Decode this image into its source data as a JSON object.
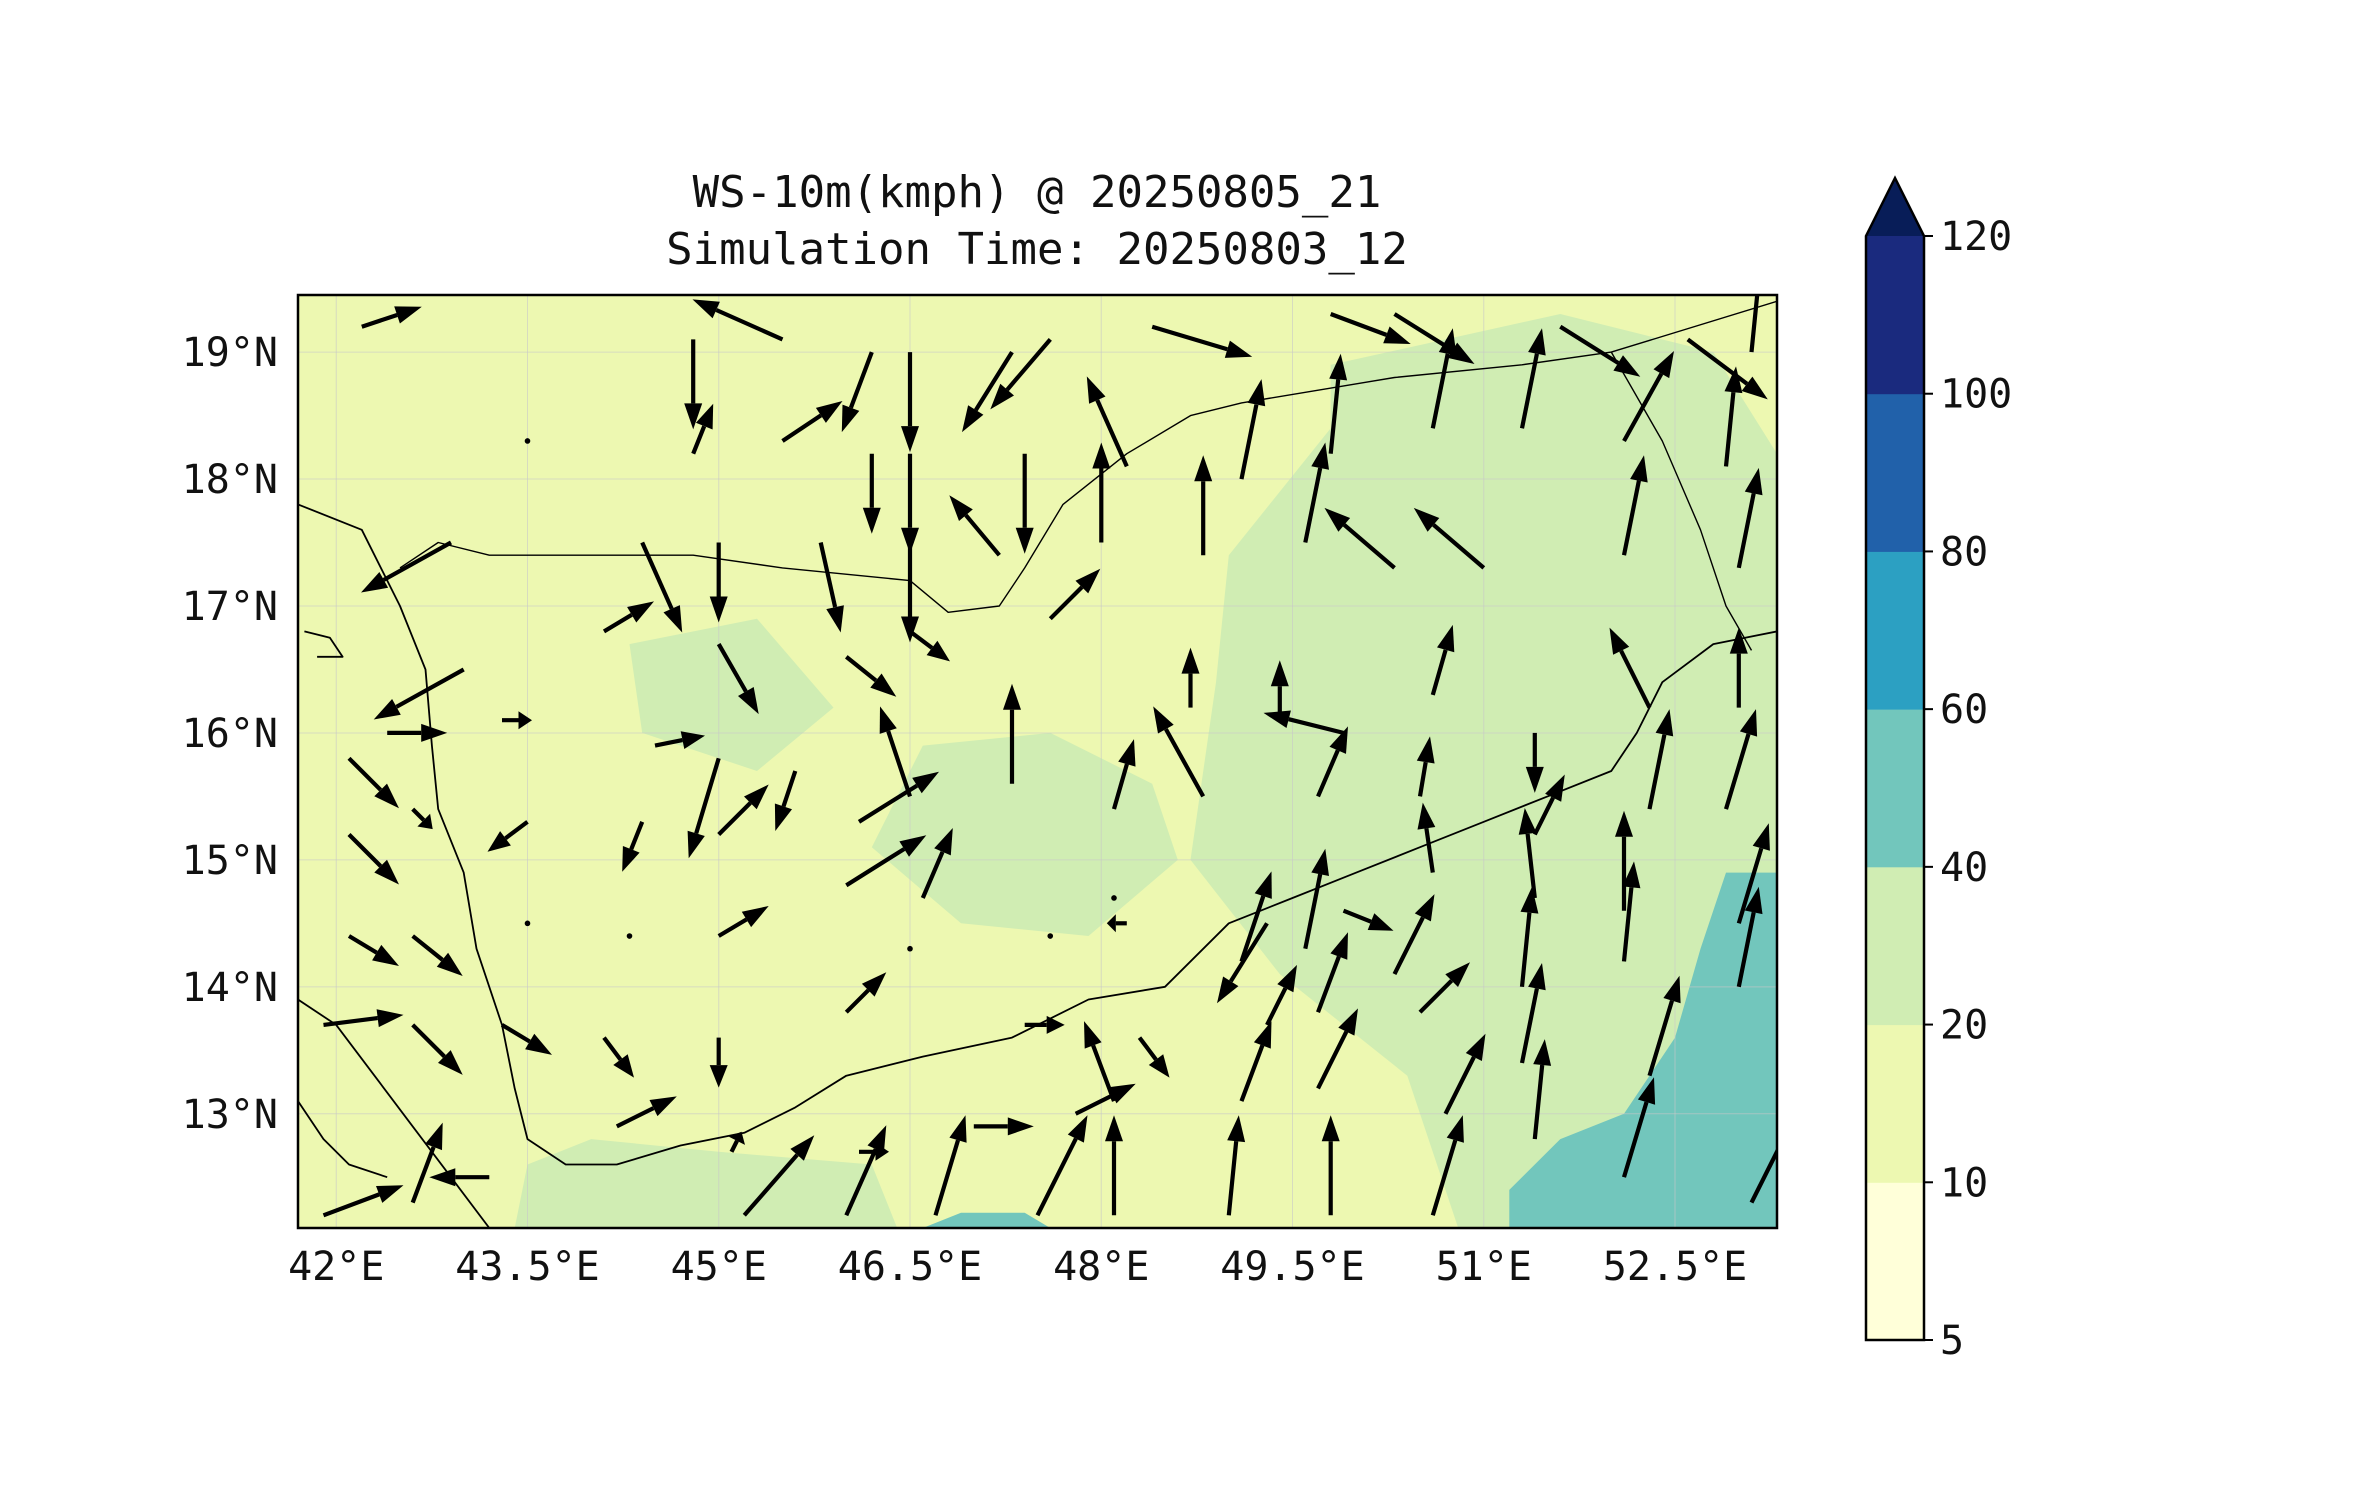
{
  "title": {
    "line1": "WS-10m(kmph) @ 20250805_21",
    "line2": "Simulation Time: 20250803_12"
  },
  "chart_data": {
    "type": "heatmap",
    "variable": "WS-10m",
    "units": "kmph",
    "xlim": [
      41.7,
      53.3
    ],
    "ylim": [
      12.1,
      19.45
    ],
    "x_ticks": [
      {
        "value": 42.0,
        "label": "42°E"
      },
      {
        "value": 43.5,
        "label": "43.5°E"
      },
      {
        "value": 45.0,
        "label": "45°E"
      },
      {
        "value": 46.5,
        "label": "46.5°E"
      },
      {
        "value": 48.0,
        "label": "48°E"
      },
      {
        "value": 49.5,
        "label": "49.5°E"
      },
      {
        "value": 51.0,
        "label": "51°E"
      },
      {
        "value": 52.5,
        "label": "52.5°E"
      }
    ],
    "y_ticks": [
      {
        "value": 13,
        "label": "13°N"
      },
      {
        "value": 14,
        "label": "14°N"
      },
      {
        "value": 15,
        "label": "15°N"
      },
      {
        "value": 16,
        "label": "16°N"
      },
      {
        "value": 17,
        "label": "17°N"
      },
      {
        "value": 18,
        "label": "18°N"
      },
      {
        "value": 19,
        "label": "19°N"
      }
    ],
    "grid": true,
    "colorbar": {
      "placement": "right",
      "extend": "max",
      "levels": [
        {
          "label": "5",
          "value": 5
        },
        {
          "label": "10",
          "value": 10
        },
        {
          "label": "20",
          "value": 20
        },
        {
          "label": "40",
          "value": 40
        },
        {
          "label": "60",
          "value": 60
        },
        {
          "label": "80",
          "value": 80
        },
        {
          "label": "100",
          "value": 100
        },
        {
          "label": "120",
          "value": 120
        }
      ],
      "colors": [
        "#ffffd9",
        "#edf8b1",
        "#d0edb3",
        "#72c6bc",
        "#2ca0c2",
        "#2161aa",
        "#1a2a7e"
      ],
      "extend_color": "#081d58"
    },
    "fill_regions": [
      {
        "level": 1,
        "points": [
          [
            41.7,
            19.45
          ],
          [
            53.3,
            19.45
          ],
          [
            53.3,
            12.1
          ],
          [
            41.7,
            12.1
          ]
        ]
      },
      {
        "level": 2,
        "points": [
          [
            49.8,
            18.9
          ],
          [
            51.6,
            19.3
          ],
          [
            52.8,
            19.0
          ],
          [
            53.3,
            18.2
          ],
          [
            53.3,
            12.1
          ],
          [
            50.8,
            12.1
          ],
          [
            50.4,
            13.3
          ],
          [
            49.4,
            14.1
          ],
          [
            48.7,
            15.0
          ],
          [
            48.9,
            16.4
          ],
          [
            49.0,
            17.4
          ],
          [
            49.8,
            18.4
          ]
        ]
      },
      {
        "level": 2,
        "points": [
          [
            46.6,
            15.9
          ],
          [
            47.6,
            16.0
          ],
          [
            48.4,
            15.6
          ],
          [
            48.6,
            15.0
          ],
          [
            47.9,
            14.4
          ],
          [
            46.9,
            14.5
          ],
          [
            46.2,
            15.1
          ]
        ]
      },
      {
        "level": 2,
        "points": [
          [
            43.4,
            12.1
          ],
          [
            46.4,
            12.1
          ],
          [
            46.2,
            12.6
          ],
          [
            45.0,
            12.7
          ],
          [
            44.0,
            12.8
          ],
          [
            43.5,
            12.6
          ]
        ]
      },
      {
        "level": 2,
        "points": [
          [
            44.3,
            16.7
          ],
          [
            45.3,
            16.9
          ],
          [
            45.9,
            16.2
          ],
          [
            45.3,
            15.7
          ],
          [
            44.4,
            16.0
          ]
        ]
      },
      {
        "level": 3,
        "points": [
          [
            51.2,
            12.1
          ],
          [
            53.3,
            12.1
          ],
          [
            53.3,
            14.9
          ],
          [
            52.9,
            14.9
          ],
          [
            52.7,
            14.3
          ],
          [
            52.5,
            13.6
          ],
          [
            52.1,
            13.0
          ],
          [
            51.6,
            12.8
          ],
          [
            51.2,
            12.4
          ]
        ]
      },
      {
        "level": 3,
        "points": [
          [
            46.6,
            12.1
          ],
          [
            47.6,
            12.1
          ],
          [
            47.4,
            12.22
          ],
          [
            46.9,
            12.22
          ]
        ]
      }
    ],
    "coastlines": [
      [
        [
          41.7,
          17.8
        ],
        [
          42.2,
          17.6
        ],
        [
          42.5,
          17.0
        ],
        [
          42.7,
          16.5
        ],
        [
          42.75,
          15.9
        ],
        [
          42.8,
          15.4
        ],
        [
          43.0,
          14.9
        ],
        [
          43.1,
          14.3
        ],
        [
          43.3,
          13.7
        ],
        [
          43.4,
          13.2
        ],
        [
          43.5,
          12.8
        ],
        [
          43.8,
          12.6
        ],
        [
          44.2,
          12.6
        ],
        [
          44.7,
          12.75
        ],
        [
          45.2,
          12.85
        ],
        [
          45.6,
          13.05
        ],
        [
          46.0,
          13.3
        ],
        [
          46.6,
          13.45
        ],
        [
          47.3,
          13.6
        ],
        [
          47.9,
          13.9
        ],
        [
          48.5,
          14.0
        ],
        [
          49.0,
          14.5
        ],
        [
          49.5,
          14.7
        ],
        [
          50.0,
          14.9
        ],
        [
          50.5,
          15.1
        ],
        [
          51.0,
          15.3
        ],
        [
          51.5,
          15.5
        ],
        [
          52.0,
          15.7
        ],
        [
          52.2,
          16.0
        ],
        [
          52.4,
          16.4
        ],
        [
          52.8,
          16.7
        ],
        [
          53.3,
          16.8
        ]
      ],
      [
        [
          41.7,
          13.9
        ],
        [
          42.0,
          13.7
        ],
        [
          42.3,
          13.3
        ],
        [
          42.6,
          12.9
        ],
        [
          42.9,
          12.5
        ],
        [
          43.2,
          12.1
        ]
      ],
      [
        [
          41.7,
          13.1
        ],
        [
          41.9,
          12.8
        ],
        [
          42.1,
          12.6
        ],
        [
          42.4,
          12.5
        ]
      ],
      [
        [
          41.75,
          16.8
        ],
        [
          41.95,
          16.75
        ],
        [
          42.05,
          16.6
        ],
        [
          41.85,
          16.6
        ]
      ]
    ],
    "borders": [
      [
        [
          42.5,
          17.3
        ],
        [
          42.8,
          17.5
        ],
        [
          43.2,
          17.4
        ],
        [
          44.0,
          17.4
        ],
        [
          44.8,
          17.4
        ],
        [
          45.5,
          17.3
        ],
        [
          46.5,
          17.2
        ],
        [
          46.8,
          16.95
        ],
        [
          47.2,
          17.0
        ],
        [
          47.4,
          17.3
        ],
        [
          47.7,
          17.8
        ],
        [
          48.2,
          18.2
        ],
        [
          48.7,
          18.5
        ],
        [
          49.1,
          18.6
        ],
        [
          50.3,
          18.8
        ],
        [
          51.3,
          18.9
        ],
        [
          52.0,
          19.0
        ],
        [
          53.3,
          19.4
        ]
      ],
      [
        [
          52.0,
          19.0
        ],
        [
          52.4,
          18.3
        ],
        [
          52.7,
          17.6
        ],
        [
          52.9,
          17.0
        ],
        [
          53.1,
          16.65
        ]
      ]
    ],
    "wind_vectors": [
      [
        42.2,
        19.2,
        0.6,
        0.2
      ],
      [
        43.5,
        18.3,
        0.0,
        0.0
      ],
      [
        44.8,
        19.1,
        0.0,
        -0.9
      ],
      [
        45.5,
        19.1,
        -0.9,
        0.4
      ],
      [
        46.2,
        19.0,
        -0.3,
        -0.8
      ],
      [
        46.5,
        19.0,
        0.0,
        -1.0
      ],
      [
        47.3,
        19.0,
        -0.5,
        -0.8
      ],
      [
        47.6,
        19.1,
        -0.6,
        -0.7
      ],
      [
        48.4,
        19.2,
        1.0,
        -0.3
      ],
      [
        49.8,
        19.3,
        0.8,
        -0.3
      ],
      [
        50.3,
        19.3,
        0.8,
        -0.5
      ],
      [
        51.6,
        19.2,
        0.8,
        -0.5
      ],
      [
        52.6,
        19.1,
        0.8,
        -0.6
      ],
      [
        53.1,
        19.0,
        0.1,
        1.0
      ],
      [
        44.8,
        18.2,
        0.2,
        0.5
      ],
      [
        45.5,
        18.3,
        0.6,
        0.4
      ],
      [
        46.2,
        18.2,
        0.0,
        -0.8
      ],
      [
        46.5,
        18.2,
        0.0,
        -1.0
      ],
      [
        47.4,
        18.2,
        0.0,
        -1.0
      ],
      [
        48.2,
        18.1,
        -0.4,
        0.9
      ],
      [
        49.1,
        18.0,
        0.2,
        1.0
      ],
      [
        49.8,
        18.2,
        0.1,
        1.0
      ],
      [
        50.6,
        18.4,
        0.2,
        1.0
      ],
      [
        51.3,
        18.4,
        0.2,
        1.0
      ],
      [
        52.1,
        18.3,
        0.5,
        0.9
      ],
      [
        52.9,
        18.1,
        0.1,
        1.0
      ],
      [
        42.9,
        17.5,
        -0.9,
        -0.5
      ],
      [
        44.4,
        17.5,
        0.4,
        -0.9
      ],
      [
        45.0,
        17.5,
        0.0,
        -0.8
      ],
      [
        45.8,
        17.5,
        0.2,
        -0.9
      ],
      [
        46.5,
        17.5,
        0.0,
        -1.0
      ],
      [
        47.2,
        17.4,
        -0.5,
        0.6
      ],
      [
        48.0,
        17.5,
        0.0,
        1.0
      ],
      [
        48.8,
        17.4,
        0.0,
        1.0
      ],
      [
        49.6,
        17.5,
        0.2,
        1.0
      ],
      [
        50.3,
        17.3,
        -0.7,
        0.6
      ],
      [
        51.0,
        17.3,
        -0.7,
        0.6
      ],
      [
        52.1,
        17.4,
        0.2,
        1.0
      ],
      [
        53.0,
        17.3,
        0.2,
        1.0
      ],
      [
        43.0,
        16.5,
        -0.9,
        -0.5
      ],
      [
        44.1,
        16.8,
        0.5,
        0.3
      ],
      [
        45.0,
        16.7,
        0.4,
        -0.7
      ],
      [
        46.0,
        16.6,
        0.5,
        -0.4
      ],
      [
        46.5,
        16.8,
        0.4,
        -0.3
      ],
      [
        47.6,
        16.9,
        0.5,
        0.5
      ],
      [
        48.7,
        16.2,
        0.0,
        0.6
      ],
      [
        49.4,
        16.1,
        0.0,
        0.6
      ],
      [
        49.9,
        16.0,
        -0.8,
        0.2
      ],
      [
        50.6,
        16.3,
        0.2,
        0.7
      ],
      [
        51.4,
        16.0,
        0.0,
        -0.6
      ],
      [
        52.3,
        16.2,
        -0.4,
        0.8
      ],
      [
        53.0,
        16.2,
        0.0,
        0.8
      ],
      [
        42.1,
        15.8,
        0.5,
        -0.5
      ],
      [
        42.4,
        16.0,
        0.6,
        0.0
      ],
      [
        43.3,
        16.1,
        0.3,
        0.0
      ],
      [
        44.5,
        15.9,
        0.5,
        0.1
      ],
      [
        45.0,
        15.8,
        -0.3,
        -1.0
      ],
      [
        45.6,
        15.7,
        -0.2,
        -0.6
      ],
      [
        46.1,
        15.3,
        0.8,
        0.5
      ],
      [
        46.5,
        15.5,
        -0.3,
        0.9
      ],
      [
        47.3,
        15.6,
        0.0,
        1.0
      ],
      [
        48.1,
        15.4,
        0.2,
        0.7
      ],
      [
        48.8,
        15.5,
        -0.5,
        0.9
      ],
      [
        49.7,
        15.5,
        0.3,
        0.7
      ],
      [
        50.5,
        15.5,
        0.1,
        0.6
      ],
      [
        51.4,
        15.2,
        0.3,
        0.6
      ],
      [
        52.3,
        15.4,
        0.2,
        1.0
      ],
      [
        52.9,
        15.4,
        0.3,
        1.0
      ],
      [
        42.1,
        15.2,
        0.5,
        -0.5
      ],
      [
        42.6,
        15.4,
        0.2,
        -0.2
      ],
      [
        43.5,
        15.3,
        -0.4,
        -0.3
      ],
      [
        44.4,
        15.3,
        -0.2,
        -0.5
      ],
      [
        45.0,
        15.2,
        0.5,
        0.5
      ],
      [
        46.0,
        14.8,
        0.8,
        0.5
      ],
      [
        46.6,
        14.7,
        0.3,
        0.7
      ],
      [
        48.1,
        14.7,
        0.0,
        0.0
      ],
      [
        49.3,
        14.5,
        -0.5,
        -0.8
      ],
      [
        49.9,
        14.6,
        0.5,
        -0.2
      ],
      [
        50.6,
        14.9,
        -0.1,
        0.7
      ],
      [
        51.4,
        14.7,
        -0.1,
        0.9
      ],
      [
        52.1,
        14.6,
        0.0,
        1.0
      ],
      [
        53.0,
        14.5,
        0.3,
        1.0
      ],
      [
        42.1,
        14.4,
        0.5,
        -0.3
      ],
      [
        42.6,
        14.4,
        0.5,
        -0.4
      ],
      [
        43.5,
        14.5,
        0.0,
        0.0
      ],
      [
        44.3,
        14.4,
        0.0,
        0.0
      ],
      [
        45.0,
        14.4,
        0.5,
        0.3
      ],
      [
        46.5,
        14.3,
        0.0,
        0.0
      ],
      [
        47.6,
        14.4,
        0.0,
        0.0
      ],
      [
        48.2,
        14.5,
        -0.2,
        0.0
      ],
      [
        49.1,
        14.2,
        0.3,
        0.9
      ],
      [
        49.6,
        14.3,
        0.2,
        1.0
      ],
      [
        50.3,
        14.1,
        0.4,
        0.8
      ],
      [
        51.3,
        14.0,
        0.1,
        1.0
      ],
      [
        52.1,
        14.2,
        0.1,
        1.0
      ],
      [
        53.0,
        14.0,
        0.2,
        1.0
      ],
      [
        41.9,
        13.7,
        0.8,
        0.1
      ],
      [
        42.6,
        13.7,
        0.5,
        -0.5
      ],
      [
        43.3,
        13.7,
        0.5,
        -0.3
      ],
      [
        44.1,
        13.6,
        0.3,
        -0.4
      ],
      [
        45.0,
        13.6,
        0.0,
        -0.5
      ],
      [
        46.0,
        13.8,
        0.4,
        0.4
      ],
      [
        47.4,
        13.7,
        0.4,
        0.0
      ],
      [
        48.3,
        13.6,
        0.3,
        -0.4
      ],
      [
        49.3,
        13.7,
        0.3,
        0.6
      ],
      [
        49.7,
        13.8,
        0.3,
        0.8
      ],
      [
        50.5,
        13.8,
        0.5,
        0.5
      ],
      [
        51.3,
        13.4,
        0.2,
        1.0
      ],
      [
        52.3,
        13.3,
        0.3,
        1.0
      ],
      [
        43.2,
        12.5,
        -0.6,
        0.0
      ],
      [
        44.2,
        12.9,
        0.6,
        0.3
      ],
      [
        45.1,
        12.7,
        0.1,
        0.2
      ],
      [
        46.1,
        12.7,
        0.3,
        0.0
      ],
      [
        47.0,
        12.9,
        0.6,
        0.0
      ],
      [
        47.8,
        13.0,
        0.6,
        0.3
      ],
      [
        48.1,
        13.1,
        -0.3,
        0.8
      ],
      [
        49.1,
        13.1,
        0.3,
        0.8
      ],
      [
        49.7,
        13.2,
        0.4,
        0.8
      ],
      [
        50.7,
        13.0,
        0.4,
        0.8
      ],
      [
        51.4,
        12.8,
        0.1,
        1.0
      ],
      [
        52.1,
        12.5,
        0.3,
        1.0
      ],
      [
        53.1,
        12.3,
        0.5,
        1.0
      ],
      [
        41.9,
        12.2,
        0.8,
        0.3
      ],
      [
        42.6,
        12.3,
        0.3,
        0.8
      ],
      [
        45.2,
        12.2,
        0.7,
        0.8
      ],
      [
        46.0,
        12.2,
        0.4,
        0.9
      ],
      [
        46.7,
        12.2,
        0.3,
        1.0
      ],
      [
        47.5,
        12.2,
        0.5,
        1.0
      ],
      [
        48.1,
        12.2,
        0.0,
        1.0
      ],
      [
        49.0,
        12.2,
        0.1,
        1.0
      ],
      [
        49.8,
        12.2,
        0.0,
        1.0
      ],
      [
        50.6,
        12.2,
        0.3,
        1.0
      ]
    ]
  }
}
